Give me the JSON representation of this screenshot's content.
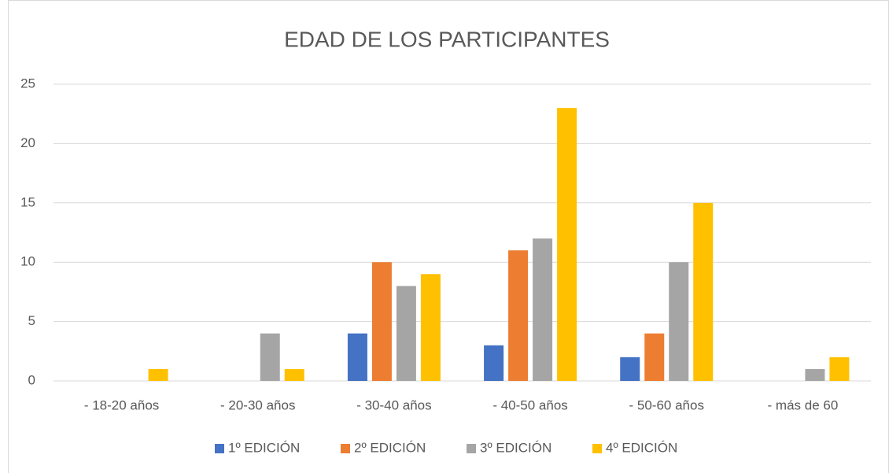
{
  "chart_data": {
    "type": "bar",
    "title": "EDAD DE LOS PARTICIPANTES",
    "categories": [
      "- 18-20 años",
      "- 20-30 años",
      "- 30-40 años",
      "- 40-50 años",
      "- 50-60 años",
      "- más de 60"
    ],
    "series": [
      {
        "name": "1º EDICIÓN",
        "color": "#4472c4",
        "values": [
          0,
          0,
          4,
          3,
          2,
          0
        ]
      },
      {
        "name": "2º EDICIÓN",
        "color": "#ed7d31",
        "values": [
          0,
          0,
          10,
          11,
          4,
          0
        ]
      },
      {
        "name": "3º EDICIÓN",
        "color": "#a5a5a5",
        "values": [
          0,
          4,
          8,
          12,
          10,
          1
        ]
      },
      {
        "name": "4º EDICIÓN",
        "color": "#ffc000",
        "values": [
          1,
          1,
          9,
          23,
          15,
          2
        ]
      }
    ],
    "ylim": [
      0,
      25
    ],
    "yticks": [
      0,
      5,
      10,
      15,
      20,
      25
    ],
    "grid": true,
    "legend": "bottom"
  }
}
